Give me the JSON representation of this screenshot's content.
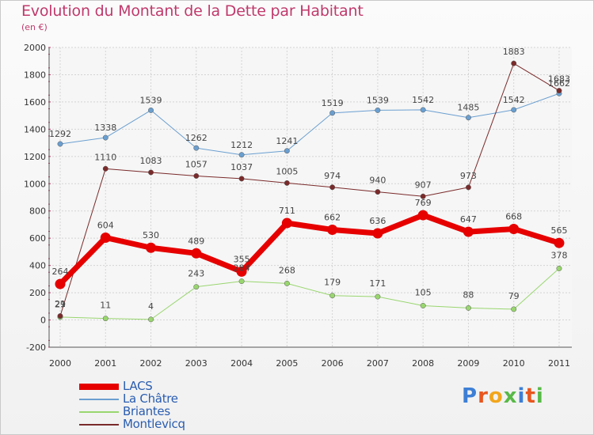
{
  "title": "Evolution du Montant de la Dette par Habitant",
  "subtitle": "(en €)",
  "logo": {
    "letters": [
      "P",
      "r",
      "o",
      "x",
      "i",
      "t",
      "i"
    ],
    "colors": [
      "#3d7fd6",
      "#e8561e",
      "#f2a61c",
      "#58b947",
      "#3d7fd6",
      "#e8561e",
      "#58b947"
    ]
  },
  "chart_data": {
    "type": "line",
    "x": [
      "2000",
      "2001",
      "2002",
      "2003",
      "2004",
      "2005",
      "2006",
      "2007",
      "2008",
      "2009",
      "2010",
      "2011"
    ],
    "ylim": [
      -200,
      2000
    ],
    "yticks": [
      "-200",
      "0",
      "200",
      "400",
      "600",
      "800",
      "1000",
      "1200",
      "1400",
      "1600",
      "1800",
      "2000"
    ],
    "grid": true,
    "legend_position": "bottom-left",
    "series": [
      {
        "name": "LACS",
        "color": "#e60000",
        "width": 7,
        "values": [
          264,
          604,
          530,
          489,
          355,
          711,
          662,
          636,
          769,
          647,
          668,
          565
        ]
      },
      {
        "name": "La Châtre",
        "color": "#6a9fd0",
        "width": 1,
        "values": [
          1292,
          1338,
          1539,
          1262,
          1212,
          1241,
          1519,
          1539,
          1542,
          1485,
          1542,
          1662
        ]
      },
      {
        "name": "Briantes",
        "color": "#99d66f",
        "width": 1,
        "values": [
          21,
          11,
          4,
          243,
          284,
          268,
          179,
          171,
          105,
          88,
          79,
          378
        ]
      },
      {
        "name": "Montlevicq",
        "color": "#7a2a2a",
        "width": 1,
        "values": [
          29,
          1110,
          1083,
          1057,
          1037,
          1005,
          974,
          940,
          907,
          973,
          1883,
          1683
        ]
      }
    ]
  }
}
